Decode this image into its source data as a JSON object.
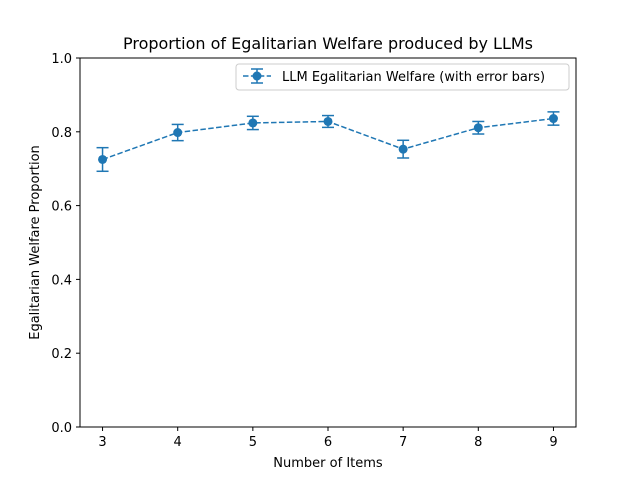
{
  "chart_data": {
    "type": "line",
    "title": "Proportion of Egalitarian Welfare produced by LLMs",
    "xlabel": "Number of Items",
    "ylabel": "Egalitarian Welfare Proportion",
    "xlim": [
      2.7,
      9.3
    ],
    "ylim": [
      0.0,
      1.0
    ],
    "x_ticks": [
      3,
      4,
      5,
      6,
      7,
      8,
      9
    ],
    "y_ticks": [
      "0.0",
      "0.2",
      "0.4",
      "0.6",
      "0.8",
      "1.0"
    ],
    "grid": false,
    "legend_position": "top-right",
    "series": [
      {
        "name": "LLM Egalitarian Welfare (with error bars)",
        "color": "#1f77b4",
        "line_style": "dashed",
        "marker": "circle",
        "x": [
          3,
          4,
          5,
          6,
          7,
          8,
          9
        ],
        "y": [
          0.725,
          0.798,
          0.824,
          0.828,
          0.753,
          0.811,
          0.836
        ],
        "yerr": [
          0.032,
          0.022,
          0.018,
          0.016,
          0.024,
          0.017,
          0.018
        ]
      }
    ]
  }
}
